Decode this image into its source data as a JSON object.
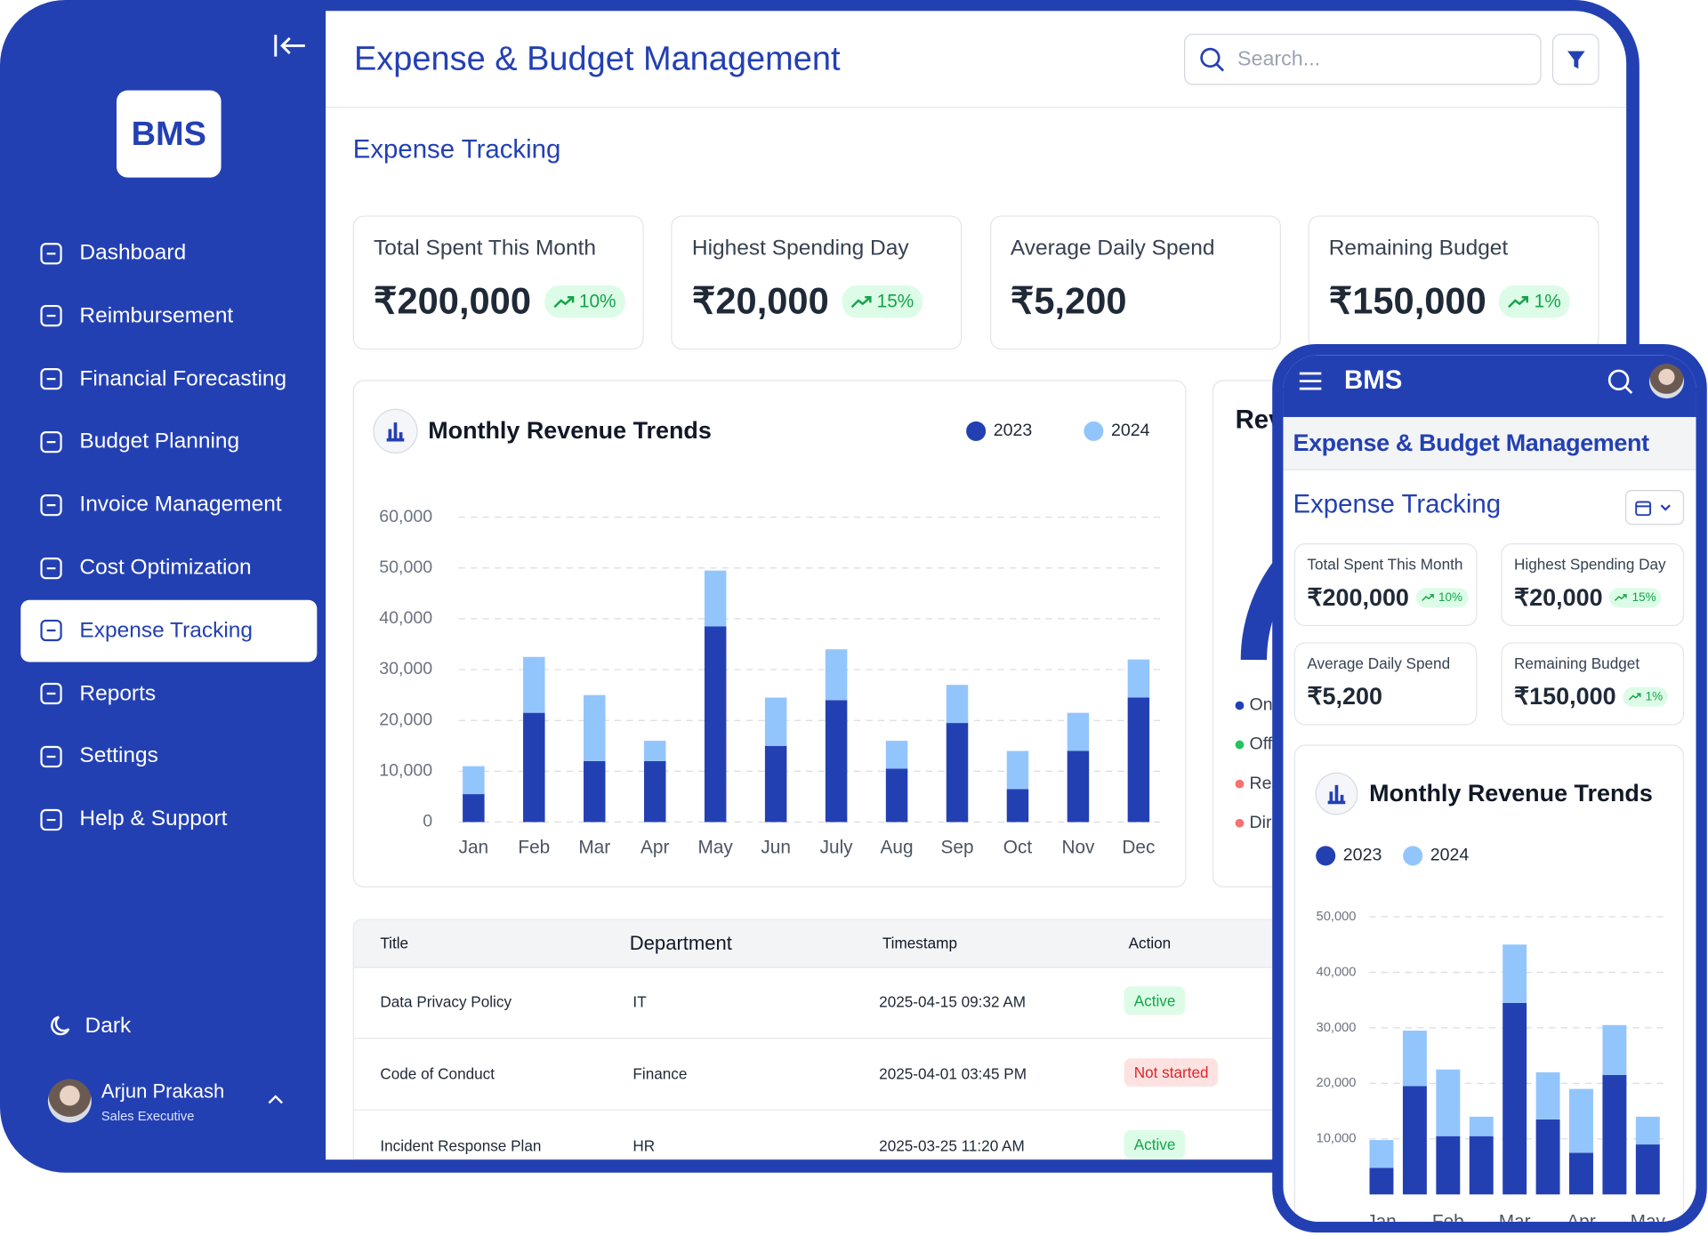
{
  "sidebar": {
    "logo": "BMS",
    "nav": [
      "Dashboard",
      "Reimbursement",
      "Financial Forecasting",
      "Budget Planning",
      "Invoice Management",
      "Cost Optimization",
      "Expense Tracking",
      "Reports",
      "Settings",
      "Help & Support"
    ],
    "active_index": 6,
    "theme_toggle": "Dark",
    "user": {
      "name": "Arjun Prakash",
      "role": "Sales Executive"
    }
  },
  "header": {
    "title": "Expense & Budget Management",
    "search_placeholder": "Search..."
  },
  "page_title": "Expense Tracking",
  "kpis": [
    {
      "label": "Total Spent This Month",
      "value": "₹200,000",
      "change": "10%"
    },
    {
      "label": "Highest Spending Day",
      "value": "₹20,000",
      "change": "15%"
    },
    {
      "label": "Average Daily Spend",
      "value": "₹5,200"
    },
    {
      "label": "Remaining Budget",
      "value": "₹150,000",
      "change": "1%"
    }
  ],
  "chart_data": [
    {
      "type": "bar",
      "stacked": true,
      "title": "Monthly Revenue Trends",
      "categories": [
        "Jan",
        "Feb",
        "Mar",
        "Apr",
        "May",
        "Jun",
        "July",
        "Aug",
        "Sep",
        "Oct",
        "Nov",
        "Dec"
      ],
      "series": [
        {
          "name": "2023",
          "color": "#2340b3",
          "values": [
            5500,
            21500,
            12000,
            12000,
            38500,
            15000,
            24000,
            10500,
            19500,
            6500,
            14000,
            24500
          ]
        },
        {
          "name": "2024",
          "color": "#93c5fd",
          "values": [
            5500,
            11000,
            13000,
            4000,
            11000,
            9500,
            10000,
            5500,
            7500,
            7500,
            7500,
            7500
          ]
        }
      ],
      "ylim": [
        0,
        60000
      ],
      "yticks": [
        0,
        {
          "value": 10000,
          "label": "10,000"
        },
        {
          "value": 20000,
          "label": "20,000"
        },
        {
          "value": 30000,
          "label": "30,000"
        },
        {
          "value": 40000,
          "label": "40,000"
        },
        {
          "value": 50000,
          "label": "50,000"
        },
        {
          "value": 60000,
          "label": "60,000"
        }
      ],
      "grid": true
    },
    {
      "type": "bar",
      "stacked": true,
      "title": "Monthly Revenue Trends",
      "categories": [
        "Jan",
        null,
        "Feb",
        null,
        "Mar",
        null,
        "Apr",
        null,
        "May"
      ],
      "series": [
        {
          "name": "2023",
          "color": "#2340b3",
          "values": [
            4800,
            19500,
            10500,
            10500,
            34500,
            13500,
            7500,
            21500,
            9000
          ]
        },
        {
          "name": "2024",
          "color": "#93c5fd",
          "values": [
            5000,
            10000,
            12000,
            3500,
            10500,
            8500,
            11500,
            9000,
            5000
          ]
        }
      ],
      "ylim": [
        0,
        50000
      ],
      "yticks": [
        {
          "value": 10000,
          "label": "10,000"
        },
        {
          "value": 20000,
          "label": "20,000"
        },
        {
          "value": 30000,
          "label": "30,000"
        },
        {
          "value": 40000,
          "label": "40,000"
        },
        {
          "value": 50000,
          "label": "50,000"
        }
      ],
      "grid": true
    }
  ],
  "revenue_card": {
    "title": "Rev",
    "legend": [
      {
        "label": "On",
        "color": "#2340b3"
      },
      {
        "label": "Off",
        "color": "#22c55e"
      },
      {
        "label": "Res",
        "color": "#f87171"
      },
      {
        "label": "Dir",
        "color": "#f87171"
      }
    ]
  },
  "table": {
    "columns": [
      "Title",
      "Department",
      "Timestamp",
      "Action"
    ],
    "rows": [
      {
        "title": "Data Privacy Policy",
        "department": "IT",
        "timestamp": "2025-04-15 09:32 AM",
        "action": "Active",
        "action_color": "#16a34a",
        "action_bg": "#dcfce7"
      },
      {
        "title": "Code of Conduct",
        "department": "Finance",
        "timestamp": "2025-04-01 03:45 PM",
        "action": "Not started",
        "action_color": "#dc2626",
        "action_bg": "#fee2e2"
      },
      {
        "title": "Incident Response Plan",
        "department": "HR",
        "timestamp": "2025-03-25 11:20 AM",
        "action": "Active",
        "action_color": "#16a34a",
        "action_bg": "#dcfce7"
      }
    ]
  },
  "mobile": {
    "logo": "BMS",
    "title": "Expense & Budget Management",
    "page_title": "Expense Tracking",
    "kpis": [
      {
        "label": "Total Spent This Month",
        "value": "₹200,000",
        "change": "10%"
      },
      {
        "label": "Highest Spending Day",
        "value": "₹20,000",
        "change": "15%"
      },
      {
        "label": "Average Daily Spend",
        "value": "₹5,200"
      },
      {
        "label": "Remaining Budget",
        "value": "₹150,000",
        "change": "1%"
      }
    ]
  }
}
